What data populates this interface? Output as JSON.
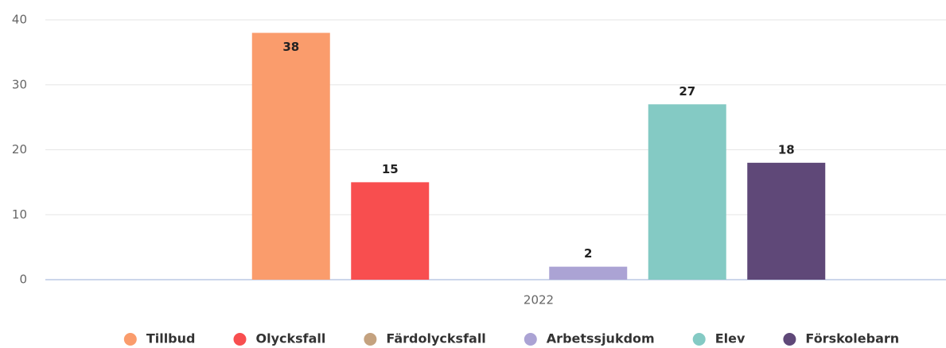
{
  "chart_data": {
    "type": "bar",
    "categories": [
      "2022"
    ],
    "series": [
      {
        "name": "Tillbud",
        "color": "#fa9c6c",
        "values": [
          38
        ]
      },
      {
        "name": "Olycksfall",
        "color": "#f84e4f",
        "values": [
          15
        ]
      },
      {
        "name": "Färdolycksfall",
        "color": "#c4a27f",
        "values": [
          null
        ]
      },
      {
        "name": "Arbetssjukdom",
        "color": "#aba3d4",
        "values": [
          2
        ]
      },
      {
        "name": "Elev",
        "color": "#84cac4",
        "values": [
          27
        ]
      },
      {
        "name": "Förskolebarn",
        "color": "#5f4878",
        "values": [
          18
        ]
      }
    ],
    "ylim": [
      0,
      40
    ],
    "yticks": [
      0,
      10,
      20,
      30,
      40
    ],
    "grid": true,
    "legend": "bottom"
  }
}
